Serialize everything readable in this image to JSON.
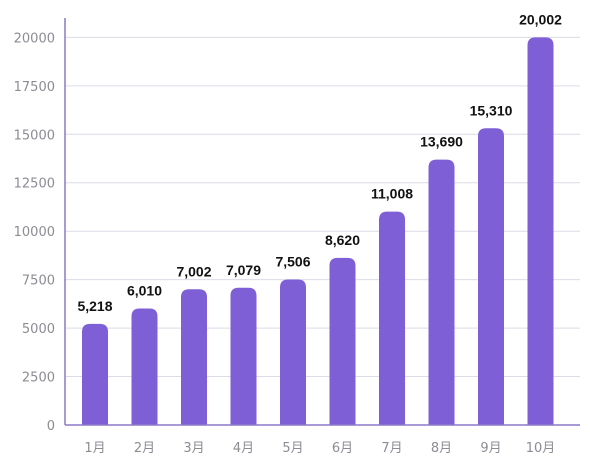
{
  "chart_data": {
    "type": "bar",
    "categories": [
      "1月",
      "2月",
      "3月",
      "4月",
      "5月",
      "6月",
      "7月",
      "8月",
      "9月",
      "10月"
    ],
    "values": [
      5218,
      6010,
      7002,
      7079,
      7506,
      8620,
      11008,
      13690,
      15310,
      20002
    ],
    "value_labels": [
      "5,218",
      "6,010",
      "7,002",
      "7,079",
      "7,506",
      "8,620",
      "11,008",
      "13,690",
      "15,310",
      "20,002"
    ],
    "y_ticks": [
      0,
      2500,
      5000,
      7500,
      10000,
      12500,
      15000,
      17500,
      20000
    ],
    "y_tick_labels": [
      "0",
      "2500",
      "5000",
      "7500",
      "10000",
      "12500",
      "15000",
      "17500",
      "20000"
    ],
    "ylim": [
      0,
      21000
    ],
    "title": "",
    "xlabel": "",
    "ylabel": "",
    "grid": true,
    "legend": "none",
    "colors": {
      "bar": "#7f5fd6",
      "gridline": "#dcdce6",
      "axis": "#8a78c8",
      "tick_text": "#8c8c94",
      "label_text": "#111111"
    }
  }
}
